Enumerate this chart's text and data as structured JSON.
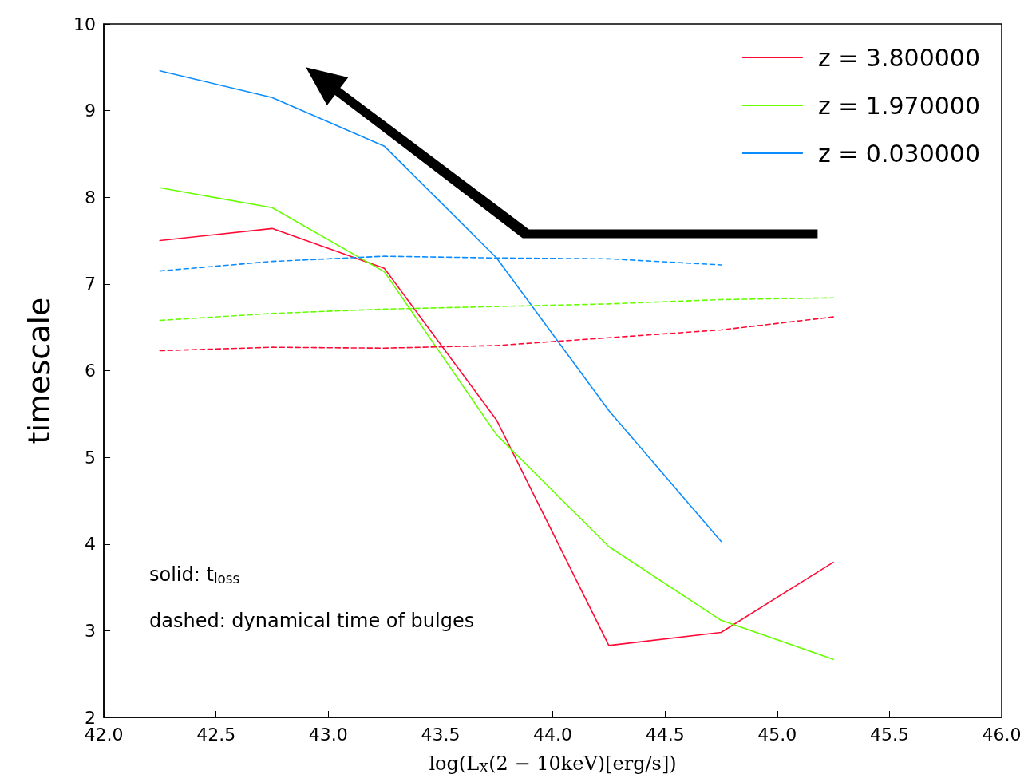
{
  "chart_data": {
    "type": "line",
    "xlabel": "log(L$_{X}$(2 − 10keV)[erg/s])",
    "ylabel": "timescale",
    "xlim": [
      42,
      46
    ],
    "xticks": [
      {
        "value": 42,
        "label": "42.0"
      },
      {
        "value": 42.5,
        "label": "42.5"
      },
      {
        "value": 43,
        "label": "43.0"
      },
      {
        "value": 43.5,
        "label": "43.5"
      },
      {
        "value": 44,
        "label": "44.0"
      },
      {
        "value": 44.5,
        "label": "44.5"
      },
      {
        "value": 45,
        "label": "45.0"
      },
      {
        "value": 45.5,
        "label": "45.5"
      },
      {
        "value": 46,
        "label": "46.0"
      }
    ],
    "ylim": [
      2,
      10
    ],
    "yticks": [
      2,
      3,
      4,
      5,
      6,
      7,
      8,
      9,
      10
    ],
    "x": [
      42.25,
      42.75,
      43.25,
      43.75,
      44.25,
      44.75,
      45.25
    ],
    "series": [
      {
        "name": "z = 3.800000",
        "color": "#ff0a35",
        "line_style": "solid",
        "values": [
          7.5,
          7.64,
          7.18,
          5.43,
          2.83,
          2.98,
          3.79
        ]
      },
      {
        "name": "z = 1.970000",
        "color": "#66ff00",
        "line_style": "solid",
        "values": [
          8.11,
          7.88,
          7.14,
          5.26,
          3.97,
          3.12,
          2.67
        ]
      },
      {
        "name": "z = 0.030000",
        "color": "#0a8cff",
        "line_style": "solid",
        "values": [
          9.46,
          9.15,
          8.59,
          7.3,
          5.54,
          4.03,
          null
        ]
      },
      {
        "color": "#ff0a35",
        "line_style": "dashed",
        "values": [
          6.23,
          6.27,
          6.26,
          6.29,
          6.38,
          6.47,
          6.62
        ]
      },
      {
        "color": "#66ff00",
        "line_style": "dashed",
        "values": [
          6.58,
          6.66,
          6.71,
          6.74,
          6.77,
          6.82,
          6.84
        ]
      },
      {
        "color": "#0a8cff",
        "line_style": "dashed",
        "values": [
          7.15,
          7.26,
          7.32,
          7.3,
          7.29,
          7.22,
          null
        ]
      }
    ],
    "annotations": [
      "solid: t$_{loss}$",
      "dashed: dynamical time of bulges"
    ],
    "legend": "top right",
    "marker": "none",
    "grid": false
  }
}
